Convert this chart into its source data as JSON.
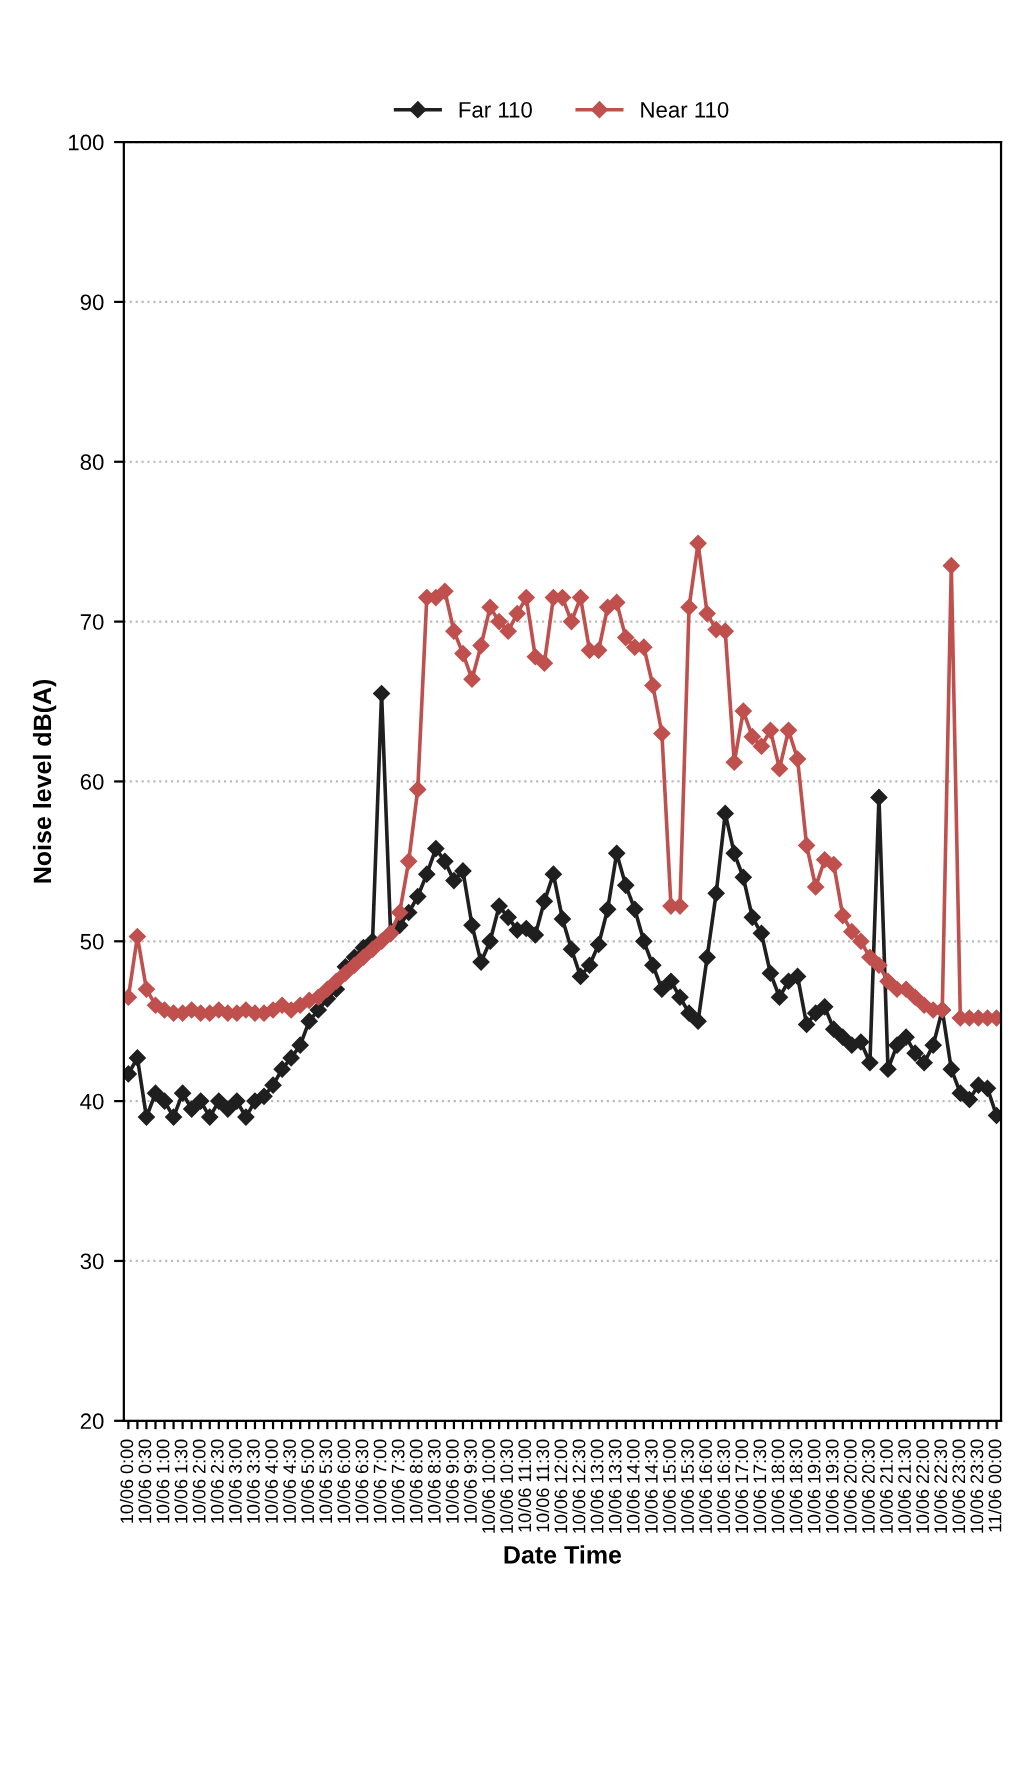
{
  "chart_data": {
    "type": "line",
    "xlabel": "Date Time",
    "ylabel": "Noise level dB(A)",
    "categories": [
      "10/06 0:00",
      null,
      "10/06 0:30",
      null,
      "10/06 1:00",
      null,
      "10/06 1:30",
      null,
      "10/06 2:00",
      null,
      "10/06 2:30",
      null,
      "10/06 3:00",
      null,
      "10/06 3:30",
      null,
      "10/06 4:00",
      null,
      "10/06 4:30",
      null,
      "10/06 5:00",
      null,
      "10/06 5:30",
      null,
      "10/06 6:00",
      null,
      "10/06 6:30",
      null,
      "10/06 7:00",
      null,
      "10/06 7:30",
      null,
      "10/06 8:00",
      null,
      "10/06 8:30",
      null,
      "10/06 9:00",
      null,
      "10/06 9:30",
      null,
      "10/06 10:00",
      null,
      "10/06 10:30",
      null,
      "10/06 11:00",
      null,
      "10/06 11:30",
      null,
      "10/06 12:00",
      null,
      "10/06 12:30",
      null,
      "10/06 13:00",
      null,
      "10/06 13:30",
      null,
      "10/06 14:00",
      null,
      "10/06 14:30",
      null,
      "10/06 15:00",
      null,
      "10/06 15:30",
      null,
      "10/06 16:00",
      null,
      "10/06 16:30",
      null,
      "10/06 17:00",
      null,
      "10/06 17:30",
      null,
      "10/06 18:00",
      null,
      "10/06 18:30",
      null,
      "10/06 19:00",
      null,
      "10/06 19:30",
      null,
      "10/06 20:00",
      null,
      "10/06 20:30",
      null,
      "10/06 21:00",
      null,
      "10/06 21:30",
      null,
      "10/06 22:00",
      null,
      "10/06 22:30",
      null,
      "10/06 23:00",
      null,
      "10/06 23:30",
      null,
      "11/06 00:00"
    ],
    "series": [
      {
        "name": "Far 110",
        "color": "#1f1f1f",
        "values": [
          41.7,
          42.7,
          39,
          40.5,
          40,
          39,
          40.5,
          39.5,
          40,
          39,
          40,
          39.5,
          40,
          39,
          40,
          40.3,
          41,
          42,
          42.7,
          43.5,
          45,
          45.7,
          46.4,
          47,
          48.4,
          49,
          49.6,
          50,
          65.5,
          50.5,
          51,
          51.8,
          52.8,
          54.2,
          55.8,
          55,
          53.8,
          54.4,
          51,
          48.7,
          50,
          52.2,
          51.5,
          50.7,
          50.8,
          50.4,
          52.5,
          54.2,
          51.4,
          49.5,
          47.8,
          48.5,
          49.8,
          52,
          55.5,
          53.5,
          52,
          50,
          48.5,
          47,
          47.5,
          46.5,
          45.5,
          45,
          49,
          53,
          58,
          55.5,
          54,
          51.5,
          50.5,
          48,
          46.5,
          47.5,
          47.8,
          44.8,
          45.5,
          45.9,
          44.5,
          44,
          43.5,
          43.7,
          42.4,
          59,
          42,
          43.5,
          44,
          43,
          42.4,
          43.5,
          45.7,
          42,
          40.5,
          40.1,
          41,
          40.8,
          39.1
        ]
      },
      {
        "name": "Near 110",
        "color": "#c0504d",
        "values": [
          46.5,
          50.3,
          47,
          46,
          45.7,
          45.5,
          45.5,
          45.7,
          45.5,
          45.5,
          45.7,
          45.5,
          45.5,
          45.7,
          45.5,
          45.5,
          45.7,
          46,
          45.7,
          46,
          46.3,
          46.5,
          47,
          47.5,
          48,
          48.5,
          49,
          49.5,
          50,
          50.5,
          51.8,
          55,
          59.5,
          71.5,
          71.5,
          71.9,
          69.4,
          68,
          66.4,
          68.5,
          70.9,
          70,
          69.4,
          70.5,
          71.5,
          67.8,
          67.4,
          71.5,
          71.5,
          70,
          71.5,
          68.2,
          68.2,
          70.9,
          71.2,
          69,
          68.4,
          68.4,
          66,
          63,
          52.2,
          52.2,
          70.9,
          74.9,
          70.5,
          69.5,
          69.4,
          61.2,
          64.4,
          62.8,
          62.2,
          63.2,
          60.8,
          63.2,
          61.4,
          56,
          53.4,
          55.1,
          54.8,
          51.6,
          50.6,
          50,
          49,
          48.5,
          47.5,
          47,
          47,
          46.5,
          46,
          45.7,
          45.7,
          73.5,
          45.2,
          45.2,
          45.2,
          45.2,
          45.2
        ]
      }
    ],
    "ylim": [
      20,
      100
    ],
    "yticks": [
      20,
      30,
      40,
      50,
      60,
      70,
      80,
      90,
      100
    ],
    "grid": "y",
    "legend": "top",
    "marker": "diamond",
    "line_style": "solid"
  }
}
